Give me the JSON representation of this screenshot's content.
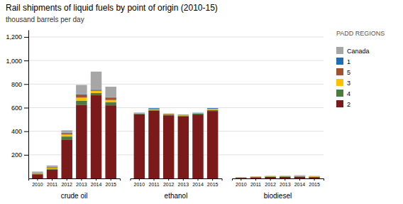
{
  "chart_data": {
    "type": "bar",
    "stacked": true,
    "title": "Rail shipments of liquid fuels by point of origin (2010-15)",
    "y_label": "thousand barrels per day",
    "groups": [
      "crude oil",
      "ethanol",
      "biodiesel"
    ],
    "categories": [
      "2010",
      "2011",
      "2012",
      "2013",
      "2014",
      "2015",
      "2010",
      "2011",
      "2012",
      "2013",
      "2014",
      "2015",
      "2010",
      "2011",
      "2012",
      "2013",
      "2014",
      "2015"
    ],
    "series": [
      {
        "name": "2",
        "color": "#7b1a1a",
        "values": [
          35,
          75,
          330,
          625,
          705,
          620,
          545,
          575,
          535,
          528,
          542,
          572,
          5,
          9,
          12,
          13,
          15,
          11
        ]
      },
      {
        "name": "4",
        "color": "#4a7c3f",
        "values": [
          5,
          8,
          25,
          35,
          20,
          25,
          5,
          8,
          7,
          6,
          7,
          9,
          2,
          3,
          4,
          4,
          5,
          4
        ]
      },
      {
        "name": "3",
        "color": "#ffc000",
        "values": [
          5,
          8,
          18,
          25,
          18,
          20,
          3,
          5,
          4,
          4,
          4,
          7,
          2,
          3,
          3,
          3,
          4,
          3
        ]
      },
      {
        "name": "5",
        "color": "#a0522d",
        "values": [
          3,
          5,
          10,
          20,
          8,
          18,
          2,
          3,
          2,
          2,
          2,
          3,
          1,
          1,
          1,
          1,
          1,
          1
        ]
      },
      {
        "name": "1",
        "color": "#1f6eb5",
        "values": [
          2,
          2,
          5,
          8,
          5,
          5,
          2,
          5,
          2,
          2,
          2,
          5,
          0,
          1,
          1,
          1,
          1,
          1
        ]
      },
      {
        "name": "Canada",
        "color": "#a6a6a6",
        "values": [
          8,
          12,
          20,
          80,
          150,
          90,
          null,
          null,
          null,
          null,
          null,
          null,
          null,
          null,
          null,
          null,
          null,
          null
        ]
      }
    ],
    "ylim": [
      0,
      1260
    ],
    "yticks": [
      200,
      400,
      600,
      800,
      {
        "value": 1000,
        "label": "1,000"
      },
      {
        "value": 1200,
        "label": "1,200"
      }
    ],
    "grid": true,
    "legend": "upper right",
    "annotations": [
      "PADD REGIONS"
    ]
  }
}
